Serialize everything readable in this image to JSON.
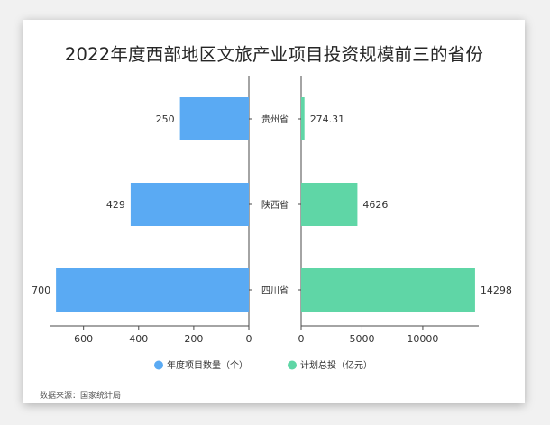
{
  "chart_data": {
    "type": "bar",
    "title": "2022年度西部地区文旅产业项目投资规模前三的省份",
    "categories": [
      "贵州省",
      "陕西省",
      "四川省"
    ],
    "series": [
      {
        "name": "年度项目数量（个）",
        "values": [
          250,
          429,
          700
        ],
        "value_labels": [
          "250",
          "429",
          "700"
        ],
        "color": "#5aaaf3",
        "axis_ticks": [
          600,
          400,
          200,
          0
        ],
        "xlim": [
          0,
          720
        ]
      },
      {
        "name": "计划总投（亿元）",
        "values": [
          274.31,
          4626,
          14298
        ],
        "value_labels": [
          "274.31",
          "4626",
          "14298"
        ],
        "color": "#5fd6a6",
        "axis_ticks": [
          0,
          5000,
          10000
        ],
        "xlim": [
          0,
          14600
        ]
      }
    ],
    "legend_position": "bottom",
    "grid": false
  },
  "source": "数据来源：国家统计局"
}
